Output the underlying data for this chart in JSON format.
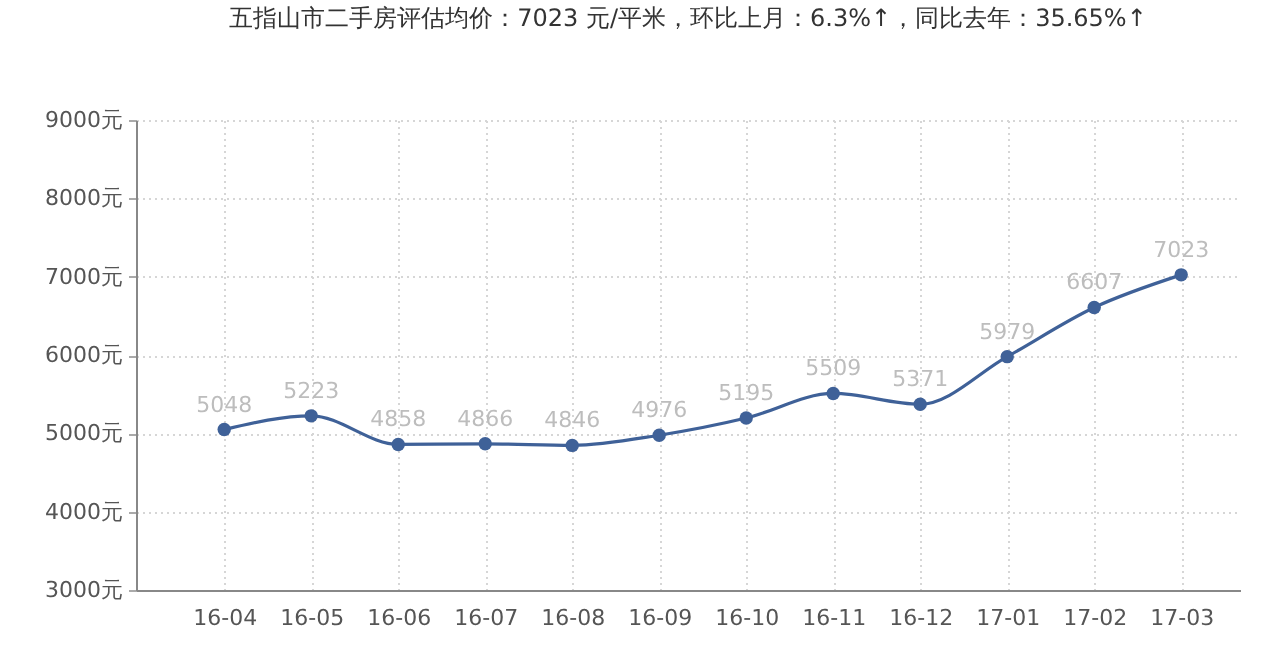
{
  "chart_data": {
    "type": "line",
    "title": "五指山市二手房评估均价：7023 元/平米，环比上月：6.3%↑，同比去年：35.65%↑",
    "categories": [
      "16-04",
      "16-05",
      "16-06",
      "16-07",
      "16-08",
      "16-09",
      "16-10",
      "16-11",
      "16-12",
      "17-01",
      "17-02",
      "17-03"
    ],
    "series": [
      {
        "color": "#3f6198",
        "values": [
          5048,
          5223,
          4858,
          4866,
          4846,
          4976,
          5195,
          5509,
          5371,
          5979,
          6607,
          7023
        ]
      }
    ],
    "ylim": [
      3000,
      9000
    ],
    "yticks": [
      {
        "value": 3000,
        "label": "3000元"
      },
      {
        "value": 4000,
        "label": "4000元"
      },
      {
        "value": 5000,
        "label": "5000元"
      },
      {
        "value": 6000,
        "label": "6000元"
      },
      {
        "value": 7000,
        "label": "7000元"
      },
      {
        "value": 8000,
        "label": "8000元"
      },
      {
        "value": 9000,
        "label": "9000元"
      }
    ],
    "grid": true,
    "marker": "circle",
    "line_style": "solid",
    "data_labels": true
  }
}
